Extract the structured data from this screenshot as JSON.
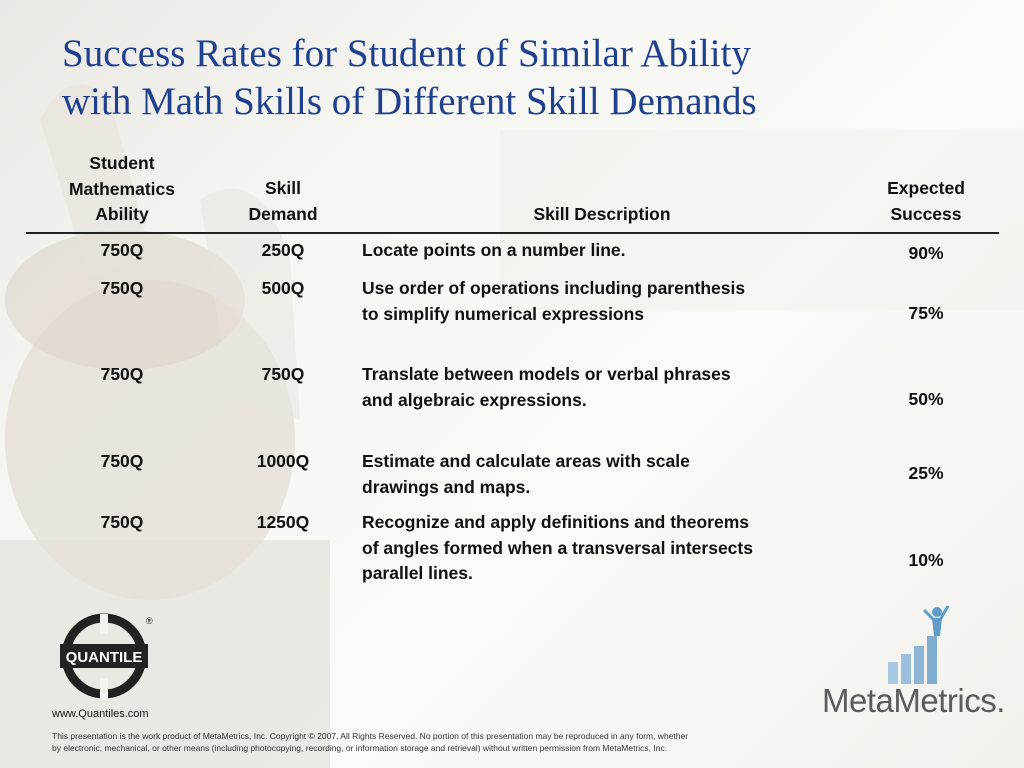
{
  "title": {
    "line1": "Success Rates for Student of Similar Ability",
    "line2": "with Math Skills of Different Skill Demands"
  },
  "table": {
    "headers": {
      "ability": [
        "Student",
        "Mathematics",
        "Ability"
      ],
      "demand": [
        "Skill",
        "Demand"
      ],
      "description": [
        "Skill Description"
      ],
      "expected": [
        "Expected",
        "Success"
      ]
    },
    "rows": [
      {
        "ability": "750Q",
        "demand": "250Q",
        "description": [
          "Locate points on a number line."
        ],
        "expected": "90%"
      },
      {
        "ability": "750Q",
        "demand": "500Q",
        "description": [
          "Use order of operations including parenthesis",
          "to simplify numerical expressions"
        ],
        "expected": "75%"
      },
      {
        "ability": "750Q",
        "demand": "750Q",
        "description": [
          "Translate between models or verbal phrases",
          "and algebraic expressions."
        ],
        "expected": "50%"
      },
      {
        "ability": "750Q",
        "demand": "1000Q",
        "description": [
          "Estimate and calculate areas with scale",
          "drawings and maps."
        ],
        "expected": "25%"
      },
      {
        "ability": "750Q",
        "demand": "1250Q",
        "description": [
          "Recognize and apply definitions and theorems",
          "of angles formed when a transversal intersects",
          "parallel lines."
        ],
        "expected": "10%"
      }
    ]
  },
  "footer": {
    "quantile_logo_text": "QUANTILE",
    "registered_mark": "®",
    "url": "www.Quantiles.com",
    "copyright_line1": "This presentation is the work product of MetaMetrics, Inc. Copyright © 2007. All Rights Reserved. No portion of this presentation may be reproduced in any form, whether",
    "copyright_line2": "by electronic, mechanical, or other means (including photocopying, recording, or information storage and retrieval) without written permission from MetaMetrics, Inc.",
    "metametrics_logo_text": "MetaMetrics."
  },
  "colors": {
    "title": "#1f3f8f",
    "logo_bars": "#8fb9d8"
  },
  "icons": {
    "quantile_logo": "quantile-logo-icon",
    "metametrics_logo": "metametrics-figure-icon"
  }
}
